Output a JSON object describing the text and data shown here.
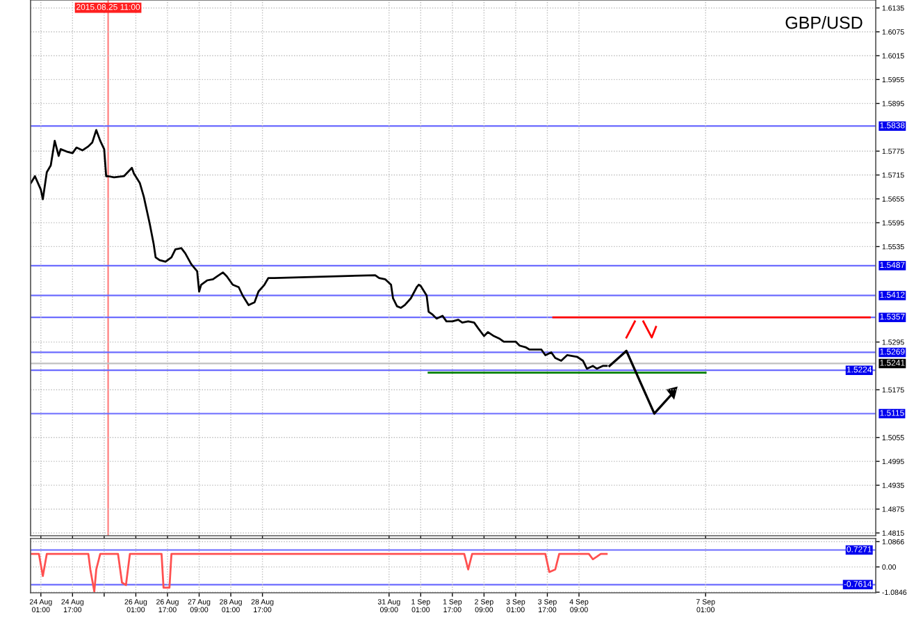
{
  "chart_data": [
    {
      "type": "line",
      "title": "GBP/USD",
      "xlim": [
        "2015-08-23T19:48",
        "2015-09-10T15:00"
      ],
      "xticks": [
        {
          "value": "2015-08-24T01:00",
          "label": null
        },
        {
          "value": "2015-08-24T17:00",
          "label": null
        },
        {
          "value": "2015-08-25T09:00",
          "label": null
        },
        {
          "value": "2015-08-26T01:00",
          "label": null
        },
        {
          "value": "2015-08-26T17:00",
          "label": null
        },
        {
          "value": "2015-08-27T09:00",
          "label": null
        },
        {
          "value": "2015-08-28T01:00",
          "label": null
        },
        {
          "value": "2015-08-28T17:00",
          "label": null
        },
        {
          "value": "2015-08-31T09:00",
          "label": null
        },
        {
          "value": "2015-09-01T01:00",
          "label": null
        },
        {
          "value": "2015-09-01T17:00",
          "label": null
        },
        {
          "value": "2015-09-02T09:00",
          "label": null
        },
        {
          "value": "2015-09-03T01:00",
          "label": null
        },
        {
          "value": "2015-09-03T17:00",
          "label": null
        },
        {
          "value": "2015-09-04T09:00",
          "label": null
        },
        {
          "value": "2015-09-07T01:00",
          "label": null
        }
      ],
      "ylim": [
        1.4808,
        1.6155
      ],
      "yticks": [
        1.6135,
        1.6075,
        1.6015,
        1.5955,
        1.5895,
        1.5775,
        1.5715,
        1.5655,
        1.5595,
        1.5535,
        1.5295,
        1.5175,
        1.5055,
        1.4995,
        1.4935,
        1.4875,
        1.4815
      ],
      "tick_labels": "y",
      "grid": true,
      "legend": false,
      "marker": "none",
      "line_style": "solid",
      "series": [
        {
          "color": "#000000",
          "x": [
            "2015-08-23T20:00",
            "2015-08-23T22:00",
            "2015-08-24T01:00",
            "2015-08-24T02:00",
            "2015-08-24T04:00",
            "2015-08-24T06:00",
            "2015-08-24T08:00",
            "2015-08-24T10:00",
            "2015-08-24T11:00",
            "2015-08-24T14:00",
            "2015-08-24T17:00",
            "2015-08-24T19:00",
            "2015-08-24T22:00",
            "2015-08-25T01:00",
            "2015-08-25T03:00",
            "2015-08-25T05:00",
            "2015-08-25T07:00",
            "2015-08-25T09:00",
            "2015-08-25T10:00",
            "2015-08-25T11:00",
            "2015-08-25T14:00",
            "2015-08-25T19:00",
            "2015-08-25T23:00",
            "2015-08-26T00:00",
            "2015-08-26T03:00",
            "2015-08-26T05:00",
            "2015-08-26T08:00",
            "2015-08-26T10:00",
            "2015-08-26T11:00",
            "2015-08-26T13:00",
            "2015-08-26T16:00",
            "2015-08-26T19:00",
            "2015-08-26T21:00",
            "2015-08-27T00:00",
            "2015-08-27T02:00",
            "2015-08-27T05:00",
            "2015-08-27T08:00",
            "2015-08-27T09:00",
            "2015-08-27T10:00",
            "2015-08-27T13:00",
            "2015-08-27T16:00",
            "2015-08-27T18:00",
            "2015-08-27T21:00",
            "2015-08-27T23:00",
            "2015-08-28T02:00",
            "2015-08-28T05:00",
            "2015-08-28T07:00",
            "2015-08-28T10:00",
            "2015-08-28T13:00",
            "2015-08-28T15:00",
            "2015-08-28T18:00",
            "2015-08-28T20:00",
            "2015-08-28T23:00",
            "2015-08-31T02:00",
            "2015-08-31T04:00",
            "2015-08-31T07:00",
            "2015-08-31T10:00",
            "2015-08-31T11:00",
            "2015-08-31T13:00",
            "2015-08-31T15:00",
            "2015-08-31T17:00",
            "2015-08-31T20:00",
            "2015-08-31T23:00",
            "2015-09-01T00:00",
            "2015-09-01T01:00",
            "2015-09-01T04:00",
            "2015-09-01T05:00",
            "2015-09-01T07:00",
            "2015-09-01T09:00",
            "2015-09-01T12:00",
            "2015-09-01T14:00",
            "2015-09-01T17:00",
            "2015-09-01T20:00",
            "2015-09-01T22:00",
            "2015-09-02T01:00",
            "2015-09-02T04:00",
            "2015-09-02T06:00",
            "2015-09-02T09:00",
            "2015-09-02T11:00",
            "2015-09-02T14:00",
            "2015-09-02T17:00",
            "2015-09-02T19:00",
            "2015-09-02T22:00",
            "2015-09-03T01:00",
            "2015-09-03T03:00",
            "2015-09-03T06:00",
            "2015-09-03T08:00",
            "2015-09-03T11:00",
            "2015-09-03T14:00",
            "2015-09-03T16:00",
            "2015-09-03T19:00",
            "2015-09-03T21:00",
            "2015-09-04T00:00",
            "2015-09-04T03:00",
            "2015-09-04T08:00",
            "2015-09-04T11:00",
            "2015-09-04T13:00",
            "2015-09-04T16:00",
            "2015-09-04T18:00",
            "2015-09-04T21:00",
            "2015-09-04T23:00"
          ],
          "values": [
            1.5695,
            1.5712,
            1.5678,
            1.5654,
            1.5722,
            1.5739,
            1.5801,
            1.5763,
            1.578,
            1.5774,
            1.577,
            1.5784,
            1.5777,
            1.5787,
            1.5797,
            1.5828,
            1.5801,
            1.578,
            1.5712,
            1.5712,
            1.5709,
            1.5712,
            1.5733,
            1.5719,
            1.5695,
            1.5661,
            1.5593,
            1.5542,
            1.5508,
            1.5501,
            1.5497,
            1.5508,
            1.5528,
            1.5531,
            1.5518,
            1.5491,
            1.5473,
            1.5422,
            1.5439,
            1.545,
            1.5453,
            1.546,
            1.547,
            1.546,
            1.5439,
            1.5433,
            1.5412,
            1.5388,
            1.5395,
            1.5422,
            1.5439,
            1.5456,
            1.5456,
            1.5463,
            1.5456,
            1.5453,
            1.5439,
            1.5405,
            1.5385,
            1.5381,
            1.5388,
            1.5405,
            1.5433,
            1.5439,
            1.5436,
            1.5412,
            1.5371,
            1.5364,
            1.5354,
            1.5361,
            1.5347,
            1.5347,
            1.5351,
            1.5344,
            1.5347,
            1.5344,
            1.533,
            1.531,
            1.532,
            1.531,
            1.5303,
            1.5296,
            1.5296,
            1.5296,
            1.5286,
            1.5282,
            1.5276,
            1.5276,
            1.5276,
            1.5262,
            1.5269,
            1.5255,
            1.5248,
            1.5262,
            1.5258,
            1.5248,
            1.5228,
            1.5235,
            1.5228,
            1.5235,
            1.5235
          ]
        },
        {
          "color": "#ff0000",
          "x": [
            "2015-09-03T20:00",
            "2015-09-10T12:00"
          ],
          "values": [
            1.5357,
            1.5357
          ]
        },
        {
          "color": "#008000",
          "x": [
            "2015-09-01T05:00",
            "2015-09-07T01:00"
          ],
          "values": [
            1.5218,
            1.5218
          ]
        }
      ],
      "ref_lines": [
        {
          "axis": "x",
          "value": "2015-08-25T11:00",
          "label": "2015.08.25 11:00",
          "color": "#ff8080"
        },
        {
          "axis": "y",
          "value": 1.5838,
          "label": "1.5838",
          "color": "#6b6bff"
        },
        {
          "axis": "y",
          "value": 1.5487,
          "label": "1.5487",
          "color": "#6b6bff"
        },
        {
          "axis": "y",
          "value": 1.5412,
          "label": "1.5412",
          "color": "#6b6bff"
        },
        {
          "axis": "y",
          "value": 1.5357,
          "label": "1.5357",
          "color": "#6b6bff"
        },
        {
          "axis": "y",
          "value": 1.5269,
          "label": "1.5269",
          "color": "#6b6bff"
        },
        {
          "axis": "y",
          "value": 1.5241,
          "label": "1.5241",
          "color": "#c0c0c0"
        },
        {
          "axis": "y",
          "value": 1.5224,
          "label": "1.5224",
          "color": "#6b6bff"
        },
        {
          "axis": "y",
          "value": 1.5115,
          "label": "1.5115",
          "color": "#6b6bff"
        }
      ]
    },
    {
      "type": "line",
      "xlim": [
        "2015-08-23T19:48",
        "2015-09-10T15:00"
      ],
      "xticks": [
        {
          "value": "2015-08-24T01:00",
          "label": "24 Aug 01:00"
        },
        {
          "value": "2015-08-24T17:00",
          "label": "24 Aug 17:00"
        },
        {
          "value": "2015-08-25T09:00",
          "label": null
        },
        {
          "value": "2015-08-26T01:00",
          "label": "26 Aug 01:00"
        },
        {
          "value": "2015-08-26T17:00",
          "label": "26 Aug 17:00"
        },
        {
          "value": "2015-08-27T09:00",
          "label": "27 Aug 09:00"
        },
        {
          "value": "2015-08-28T01:00",
          "label": "28 Aug 01:00"
        },
        {
          "value": "2015-08-28T17:00",
          "label": "28 Aug 17:00"
        },
        {
          "value": "2015-08-31T09:00",
          "label": "31 Aug 09:00"
        },
        {
          "value": "2015-09-01T01:00",
          "label": "1 Sep 01:00"
        },
        {
          "value": "2015-09-01T17:00",
          "label": "1 Sep 17:00"
        },
        {
          "value": "2015-09-02T09:00",
          "label": "2 Sep 09:00"
        },
        {
          "value": "2015-09-03T01:00",
          "label": "3 Sep 01:00"
        },
        {
          "value": "2015-09-03T17:00",
          "label": "3 Sep 17:00"
        },
        {
          "value": "2015-09-04T09:00",
          "label": "4 Sep 09:00"
        },
        {
          "value": "2015-09-07T01:00",
          "label": "7 Sep 01:00"
        }
      ],
      "ylim": [
        -1.11,
        1.22
      ],
      "yticks": [
        1.0866,
        {
          "value": 0,
          "label": "0.00"
        },
        -1.0846
      ],
      "grid": true,
      "legend": false,
      "marker": "none",
      "line_style": "solid",
      "series": [
        {
          "color": "#ff5050",
          "x": [
            "2015-08-23T20:00",
            "2015-08-24T00:00",
            "2015-08-24T02:00",
            "2015-08-24T04:00",
            "2015-08-25T01:00",
            "2015-08-25T02:00",
            "2015-08-25T04:00",
            "2015-08-25T05:00",
            "2015-08-25T07:00",
            "2015-08-25T16:00",
            "2015-08-25T18:00",
            "2015-08-25T20:00",
            "2015-08-25T22:00",
            "2015-08-26T14:00",
            "2015-08-26T15:00",
            "2015-08-26T18:00",
            "2015-08-26T19:00",
            "2015-09-01T23:00",
            "2015-09-02T01:00",
            "2015-09-02T03:00",
            "2015-09-03T16:00",
            "2015-09-03T18:00",
            "2015-09-03T21:00",
            "2015-09-03T23:00",
            "2015-09-04T14:00",
            "2015-09-04T16:00",
            "2015-09-04T18:00",
            "2015-09-04T20:00",
            "2015-09-04T23:00"
          ],
          "values": [
            0.56,
            0.56,
            -0.39,
            0.56,
            0.56,
            -0.11,
            -1.06,
            -0.11,
            0.56,
            0.56,
            -0.67,
            -0.78,
            0.56,
            0.56,
            -0.89,
            -0.89,
            0.56,
            0.56,
            -0.11,
            0.56,
            0.56,
            -0.22,
            -0.11,
            0.56,
            0.56,
            0.33,
            0.44,
            0.56,
            0.56
          ]
        }
      ],
      "ref_lines": [
        {
          "axis": "y",
          "value": 0.7271,
          "label": "0.7271",
          "color": "#6b6bff"
        },
        {
          "axis": "y",
          "value": -0.7614,
          "label": "-0.7614",
          "color": "#6b6bff"
        }
      ]
    }
  ]
}
